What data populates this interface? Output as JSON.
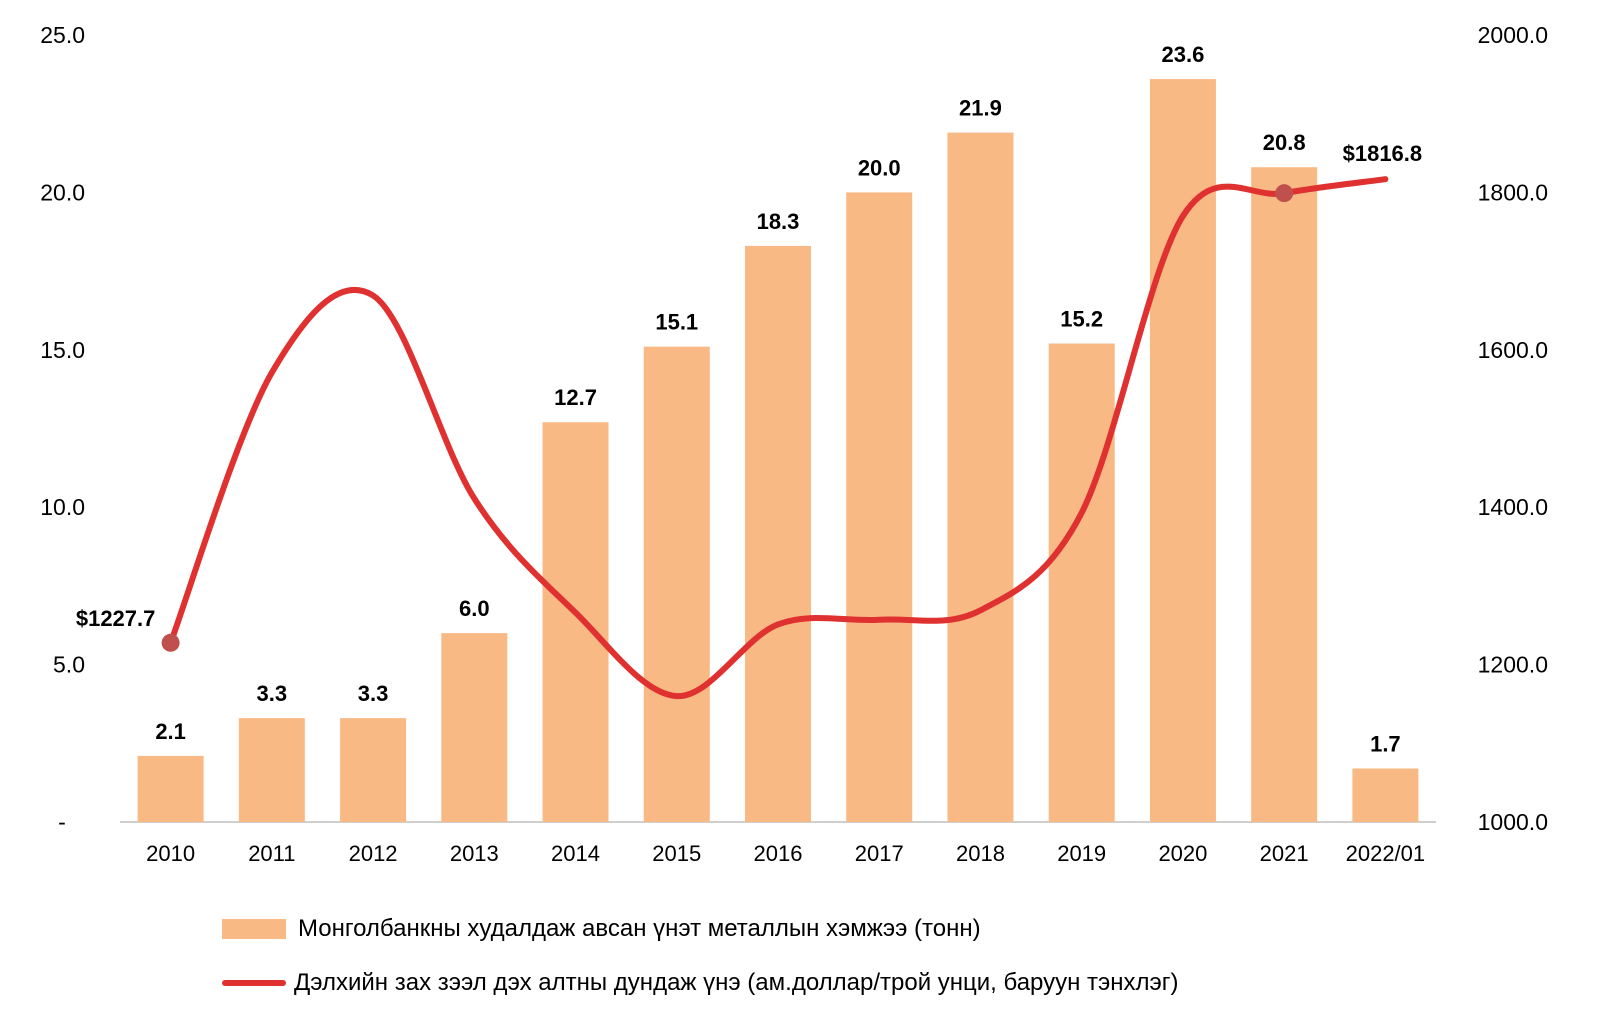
{
  "chart_data": {
    "type": "bar",
    "categories": [
      "2010",
      "2011",
      "2012",
      "2013",
      "2014",
      "2015",
      "2016",
      "2017",
      "2018",
      "2019",
      "2020",
      "2021",
      "2022/01"
    ],
    "series": [
      {
        "name": "Монголбанкны худалдаж авсан үнэт металлын хэмжээ (тонн)",
        "type": "bar",
        "axis": "left",
        "color": "#F9B985",
        "values": [
          2.1,
          3.3,
          3.3,
          6.0,
          12.7,
          15.1,
          18.3,
          20.0,
          21.9,
          15.2,
          23.6,
          20.8,
          1.7
        ],
        "labels": [
          "2.1",
          "3.3",
          "3.3",
          "6.0",
          "12.7",
          "15.1",
          "18.3",
          "20.0",
          "21.9",
          "15.2",
          "23.6",
          "20.8",
          "1.7"
        ]
      },
      {
        "name": "Дэлхийн зах зээл дэх алтны дундаж үнэ (ам.доллар/трой унци, баруун тэнхлэг)",
        "type": "line",
        "axis": "right",
        "color": "#E03131",
        "values": [
          1227.7,
          1571,
          1669,
          1411,
          1266,
          1160,
          1251,
          1257,
          1269,
          1393,
          1770,
          1799,
          1816.8
        ],
        "annotations": [
          {
            "index": 0,
            "text": "$1227.7"
          },
          {
            "index": 12,
            "text": "$1816.8"
          }
        ],
        "markers": [
          0,
          11
        ],
        "marker_color": "#C0504D"
      }
    ],
    "y_left": {
      "min": 0,
      "max": 25,
      "ticks": [
        "-",
        "5.0",
        "10.0",
        "15.0",
        "20.0",
        "25.0"
      ]
    },
    "y_right": {
      "min": 1000,
      "max": 2000,
      "ticks": [
        "1000.0",
        "1200.0",
        "1400.0",
        "1600.0",
        "1800.0",
        "2000.0"
      ]
    },
    "grid": false,
    "legend_position": "bottom"
  }
}
